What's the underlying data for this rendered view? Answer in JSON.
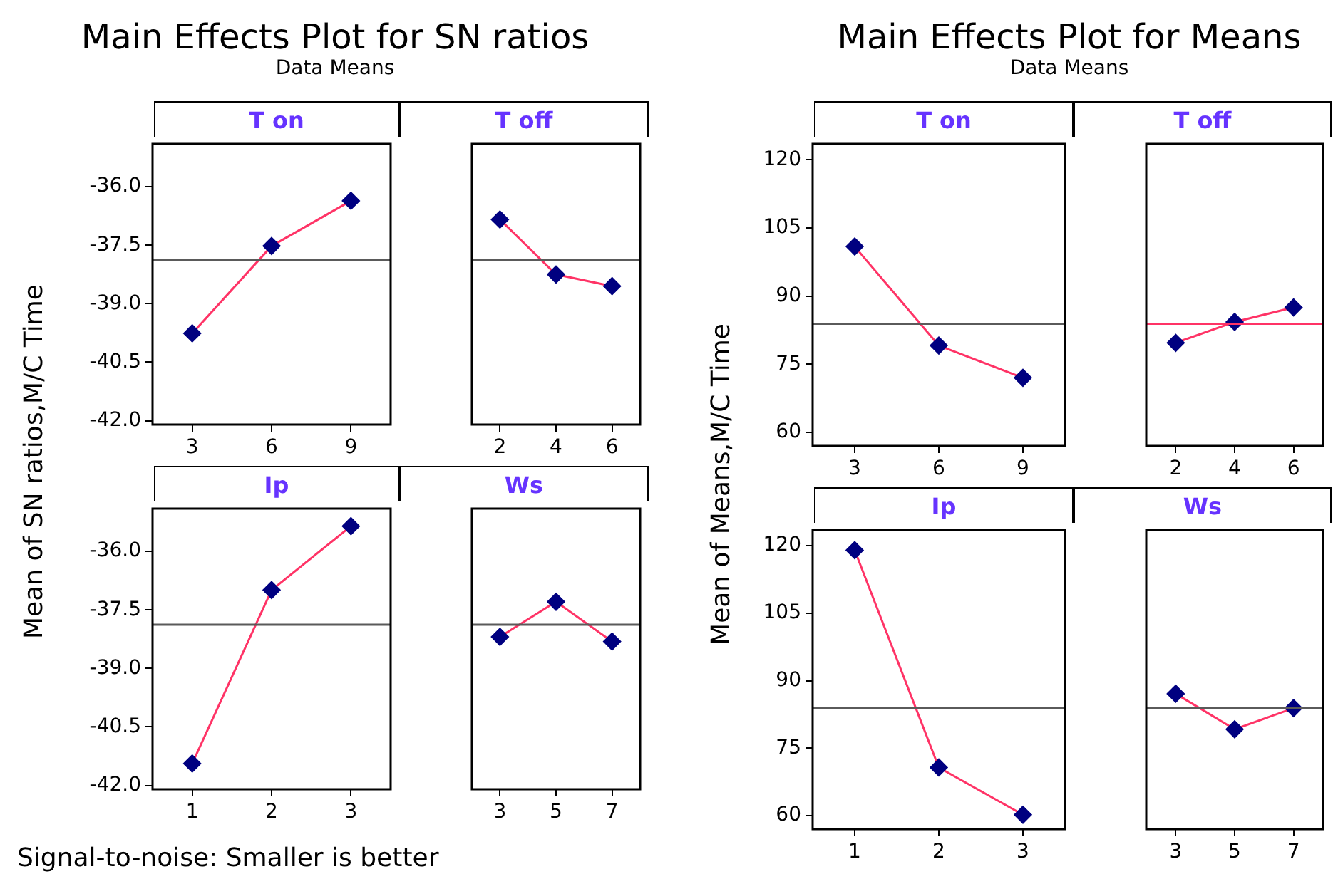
{
  "chart_data": [
    {
      "type": "other",
      "title": "Main Effects Plot for SN ratios",
      "subtitle": "Data Means",
      "ylabel": "Mean of SN ratios,M/C Time",
      "annotations": [
        "Signal-to-noise: Smaller is better"
      ]
    },
    {
      "type": "line",
      "title": "T on",
      "categories": [
        "3",
        "6",
        "9"
      ],
      "values": [
        -39.76,
        -37.52,
        -36.36
      ],
      "color": "#ff3366",
      "marker": "diamond",
      "ylim": [
        -42.1,
        -34.9
      ],
      "yticks": [
        {
          "value": -42,
          "label": "-42.0"
        },
        -40.5,
        {
          "value": -39,
          "label": "-39.0"
        },
        -37.5,
        {
          "value": -36,
          "label": "-36.0"
        }
      ],
      "ref_lines": [
        {
          "axis": "y",
          "value": -37.88,
          "color": "#5a5a5a"
        }
      ]
    },
    {
      "type": "line",
      "title": "T off",
      "categories": [
        "2",
        "4",
        "6"
      ],
      "values": [
        -36.84,
        -38.25,
        -38.55
      ],
      "color": "#ff3366",
      "marker": "diamond",
      "ylim": [
        -42.1,
        -34.9
      ],
      "ref_lines": [
        {
          "axis": "y",
          "value": -37.88,
          "color": "#5a5a5a"
        }
      ],
      "tick_labels": "x"
    },
    {
      "type": "line",
      "title": "Ip",
      "categories": [
        "1",
        "2",
        "3"
      ],
      "values": [
        -41.44,
        -36.99,
        -35.35
      ],
      "color": "#ff3366",
      "marker": "diamond",
      "ylim": [
        -42.1,
        -34.9
      ],
      "yticks": [
        {
          "value": -42,
          "label": "-42.0"
        },
        -40.5,
        {
          "value": -39,
          "label": "-39.0"
        },
        -37.5,
        {
          "value": -36,
          "label": "-36.0"
        }
      ],
      "ref_lines": [
        {
          "axis": "y",
          "value": -37.88,
          "color": "#5a5a5a"
        }
      ]
    },
    {
      "type": "line",
      "title": "Ws",
      "categories": [
        "3",
        "5",
        "7"
      ],
      "values": [
        -38.19,
        -37.29,
        -38.31
      ],
      "color": "#ff3366",
      "marker": "diamond",
      "ylim": [
        -42.1,
        -34.9
      ],
      "ref_lines": [
        {
          "axis": "y",
          "value": -37.88,
          "color": "#5a5a5a"
        }
      ],
      "tick_labels": "x"
    },
    {
      "type": "other",
      "title": "Main Effects Plot for Means",
      "subtitle": "Data Means",
      "ylabel": "Mean of Means,M/C Time"
    },
    {
      "type": "line",
      "title": "T on",
      "categories": [
        "3",
        "6",
        "9"
      ],
      "values": [
        100.9,
        79.1,
        72.0
      ],
      "color": "#ff3366",
      "marker": "diamond",
      "ylim": [
        57,
        123.5
      ],
      "yticks": [
        60,
        75,
        90,
        105,
        120
      ],
      "ref_lines": [
        {
          "axis": "y",
          "value": 83.9,
          "color": "#5a5a5a"
        }
      ]
    },
    {
      "type": "line",
      "title": "T off",
      "categories": [
        "2",
        "4",
        "6"
      ],
      "values": [
        79.7,
        84.3,
        87.5
      ],
      "color": "#ff3366",
      "marker": "diamond",
      "ylim": [
        57,
        123.5
      ],
      "ref_lines": [
        {
          "axis": "y",
          "value": 83.9,
          "color": "#ff3366"
        }
      ],
      "tick_labels": "x"
    },
    {
      "type": "line",
      "title": "Ip",
      "categories": [
        "1",
        "2",
        "3"
      ],
      "values": [
        119.0,
        70.7,
        60.2
      ],
      "color": "#ff3366",
      "marker": "diamond",
      "ylim": [
        57,
        123.5
      ],
      "yticks": [
        60,
        75,
        90,
        105,
        120
      ],
      "ref_lines": [
        {
          "axis": "y",
          "value": 83.9,
          "color": "#5a5a5a"
        }
      ]
    },
    {
      "type": "line",
      "title": "Ws",
      "categories": [
        "3",
        "5",
        "7"
      ],
      "values": [
        87.1,
        79.2,
        83.9
      ],
      "color": "#ff3366",
      "marker": "diamond",
      "ylim": [
        57,
        123.5
      ],
      "ref_lines": [
        {
          "axis": "y",
          "value": 83.9,
          "color": "#5a5a5a"
        }
      ],
      "tick_labels": "x"
    }
  ]
}
